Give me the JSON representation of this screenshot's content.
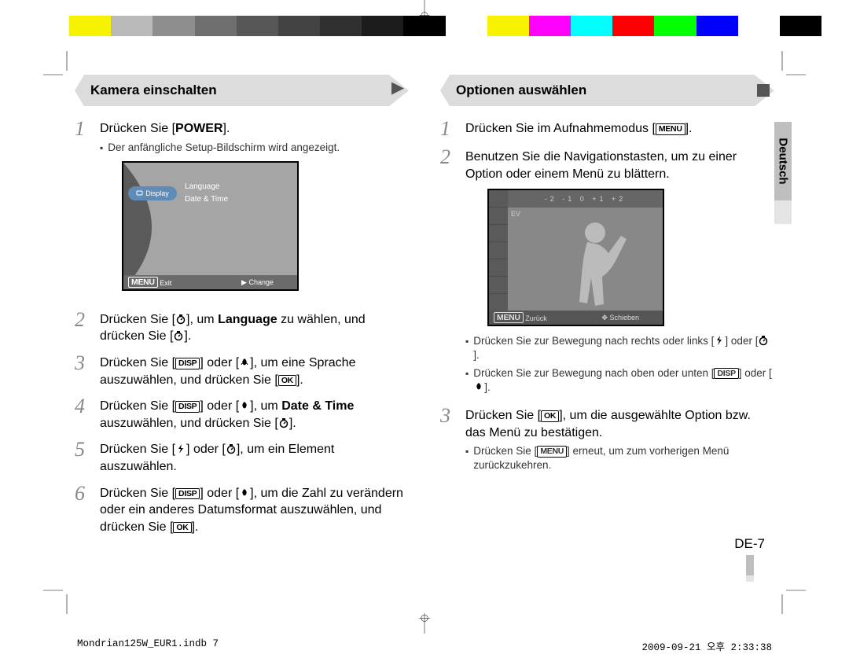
{
  "colorbar": [
    "#ffffff",
    "#f6f200",
    "#b9b9b9",
    "#8e8e8e",
    "#6f6f6f",
    "#575757",
    "#434343",
    "#303030",
    "#1c1c1c",
    "#000000",
    "#ffffff",
    "#f6f200",
    "#ff00ff",
    "#00ffff",
    "#ff0000",
    "#00ff00",
    "#0000ff",
    "#ffffff",
    "#000000"
  ],
  "left": {
    "heading": "Kamera einschalten",
    "steps": {
      "s1": {
        "text_a": "Drücken Sie [",
        "bold": "POWER",
        "text_b": "]."
      },
      "s1_sub": "Der anfängliche Setup-Bildschirm wird angezeigt.",
      "s2_a": "Drücken Sie [",
      "s2_b": "], um ",
      "s2_bold": "Language",
      "s2_c": " zu wählen, und drücken Sie [",
      "s2_d": "].",
      "s3_a": "Drücken Sie [",
      "s3_b": "] oder [",
      "s3_c": "], um eine Sprache auszuwählen, und drücken Sie [",
      "s3_d": "].",
      "s4_a": "Drücken Sie [",
      "s4_b": "] oder [",
      "s4_c": "], um ",
      "s4_bold": "Date & Time",
      "s4_d": " auszuwählen, und drücken Sie [",
      "s4_e": "].",
      "s5_a": "Drücken Sie [",
      "s5_b": "] oder [",
      "s5_c": "], um ein Element auszuwählen.",
      "s6_a": "Drücken Sie [",
      "s6_b": "] oder [",
      "s6_c": "], um die Zahl zu verändern oder ein anderes Datumsformat auszuwählen, und drücken Sie [",
      "s6_d": "]."
    },
    "lcd": {
      "display": "Display",
      "item1": "Language",
      "item2": "Date & Time",
      "footer_left_key": "MENU",
      "footer_left": "Exit",
      "footer_right": "Change"
    }
  },
  "right": {
    "heading": "Optionen auswählen",
    "s1_a": "Drücken Sie im Aufnahmemodus [",
    "s1_b": "].",
    "s2": "Benutzen Sie die Navigationstasten, um zu einer Option oder einem Menü zu blättern.",
    "s2_sub1_a": "Drücken Sie zur Bewegung nach rechts oder links [",
    "s2_sub1_b": "] oder [",
    "s2_sub1_c": "].",
    "s2_sub2_a": "Drücken Sie zur Bewegung nach oben oder unten [",
    "s2_sub2_b": "] oder [",
    "s2_sub2_c": "].",
    "s3_a": "Drücken Sie [",
    "s3_b": "], um die ausgewählte Option bzw. das Menü zu bestätigen.",
    "s3_sub_a": "Drücken Sie [",
    "s3_sub_b": "] erneut, um zum vorherigen Menü zurückzukehren.",
    "lcd2": {
      "topbar": "-2   -1    0   +1   +2",
      "ev": "EV",
      "footer_left_key": "MENU",
      "footer_left": "Zurück",
      "footer_right": "Schieben"
    }
  },
  "langtab": "Deutsch",
  "page_number": "DE-7",
  "slug_left": "Mondrian125W_EUR1.indb   7",
  "slug_right": "2009-09-21   오후 2:33:38",
  "keys": {
    "disp": "DISP",
    "ok": "OK",
    "menu": "MENU"
  }
}
